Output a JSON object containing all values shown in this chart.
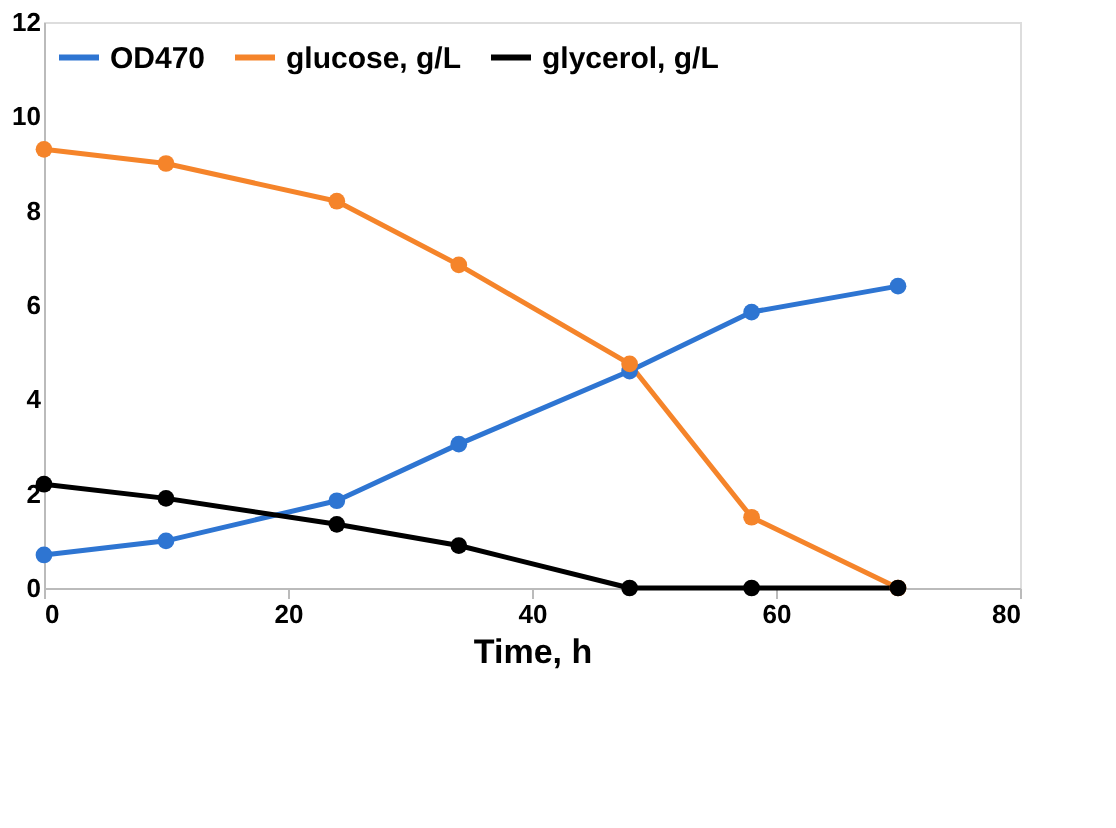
{
  "chart_data": {
    "type": "line",
    "xlabel": "Time, h",
    "x": [
      0,
      10,
      24,
      34,
      48,
      58,
      70
    ],
    "series": [
      {
        "name": "OD470",
        "color": "#2e75d2",
        "values": [
          0.7,
          1.0,
          1.85,
          3.05,
          4.6,
          5.85,
          6.4
        ]
      },
      {
        "name": "glucose, g/L",
        "color": "#f5842a",
        "values": [
          9.3,
          9.0,
          8.2,
          6.85,
          4.75,
          1.5,
          0
        ]
      },
      {
        "name": "glycerol, g/L",
        "color": "#000000",
        "values": [
          2.2,
          1.9,
          1.35,
          0.9,
          0,
          0,
          0
        ]
      }
    ],
    "xlim": [
      0,
      80
    ],
    "xticks": [
      0,
      20,
      40,
      60,
      80
    ],
    "ylim": [
      0,
      12
    ],
    "yticks": [
      0,
      2,
      4,
      6,
      8,
      10,
      12
    ],
    "grid": false,
    "legend": "top left",
    "marker": "circle",
    "line_style": "solid"
  }
}
